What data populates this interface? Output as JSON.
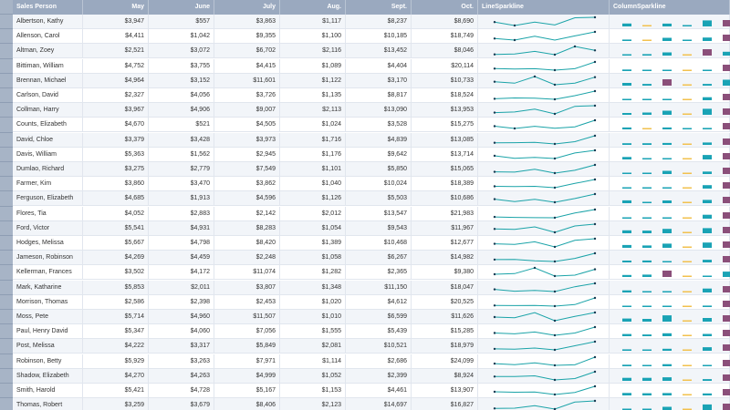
{
  "colors": {
    "header_bg": "#9aa9bf",
    "line": "#1aa3a8",
    "col_mid": "#1aa3b5",
    "col_low": "#f2c14e",
    "col_high": "#8b4f7a"
  },
  "headers": [
    "Sales Person",
    "May",
    "June",
    "July",
    "Aug.",
    "Sept.",
    "Oct.",
    "LineSparkline",
    "ColumnSparkline"
  ],
  "rows": [
    {
      "name": "Albertson, Kathy",
      "v": [
        "$3,947",
        "$557",
        "$3,863",
        "$1,117",
        "$8,237",
        "$8,690"
      ],
      "n": [
        3947,
        557,
        3863,
        1117,
        8237,
        8690
      ]
    },
    {
      "name": "Allenson, Carol",
      "v": [
        "$4,411",
        "$1,042",
        "$9,355",
        "$1,100",
        "$10,185",
        "$18,749"
      ],
      "n": [
        4411,
        1042,
        9355,
        1100,
        10185,
        18749
      ]
    },
    {
      "name": "Altman, Zoey",
      "v": [
        "$2,521",
        "$3,072",
        "$6,702",
        "$2,116",
        "$13,452",
        "$8,046"
      ],
      "n": [
        2521,
        3072,
        6702,
        2116,
        13452,
        8046
      ]
    },
    {
      "name": "Bittiman, William",
      "v": [
        "$4,752",
        "$3,755",
        "$4,415",
        "$1,089",
        "$4,404",
        "$20,114"
      ],
      "n": [
        4752,
        3755,
        4415,
        1089,
        4404,
        20114
      ]
    },
    {
      "name": "Brennan, Michael",
      "v": [
        "$4,964",
        "$3,152",
        "$11,601",
        "$1,122",
        "$3,170",
        "$10,733"
      ],
      "n": [
        4964,
        3152,
        11601,
        1122,
        3170,
        10733
      ]
    },
    {
      "name": "Carlson, David",
      "v": [
        "$2,327",
        "$4,056",
        "$3,726",
        "$1,135",
        "$8,817",
        "$18,524"
      ],
      "n": [
        2327,
        4056,
        3726,
        1135,
        8817,
        18524
      ]
    },
    {
      "name": "Collman, Harry",
      "v": [
        "$3,967",
        "$4,906",
        "$9,007",
        "$2,113",
        "$13,090",
        "$13,953"
      ],
      "n": [
        3967,
        4906,
        9007,
        2113,
        13090,
        13953
      ]
    },
    {
      "name": "Counts, Elizabeth",
      "v": [
        "$4,670",
        "$521",
        "$4,505",
        "$1,024",
        "$3,528",
        "$15,275"
      ],
      "n": [
        4670,
        521,
        4505,
        1024,
        3528,
        15275
      ]
    },
    {
      "name": "David, Chloe",
      "v": [
        "$3,379",
        "$3,428",
        "$3,973",
        "$1,716",
        "$4,839",
        "$13,085"
      ],
      "n": [
        3379,
        3428,
        3973,
        1716,
        4839,
        13085
      ]
    },
    {
      "name": "Davis, William",
      "v": [
        "$5,363",
        "$1,562",
        "$2,945",
        "$1,176",
        "$9,642",
        "$13,714"
      ],
      "n": [
        5363,
        1562,
        2945,
        1176,
        9642,
        13714
      ]
    },
    {
      "name": "Dumlao, Richard",
      "v": [
        "$3,275",
        "$2,779",
        "$7,549",
        "$1,101",
        "$5,850",
        "$15,065"
      ],
      "n": [
        3275,
        2779,
        7549,
        1101,
        5850,
        15065
      ]
    },
    {
      "name": "Farmer, Kim",
      "v": [
        "$3,860",
        "$3,470",
        "$3,862",
        "$1,040",
        "$10,024",
        "$18,389"
      ],
      "n": [
        3860,
        3470,
        3862,
        1040,
        10024,
        18389
      ]
    },
    {
      "name": "Ferguson, Elizabeth",
      "v": [
        "$4,685",
        "$1,913",
        "$4,596",
        "$1,126",
        "$5,503",
        "$10,686"
      ],
      "n": [
        4685,
        1913,
        4596,
        1126,
        5503,
        10686
      ]
    },
    {
      "name": "Flores, Tia",
      "v": [
        "$4,052",
        "$2,883",
        "$2,142",
        "$2,012",
        "$13,547",
        "$21,983"
      ],
      "n": [
        4052,
        2883,
        2142,
        2012,
        13547,
        21983
      ]
    },
    {
      "name": "Ford, Victor",
      "v": [
        "$5,541",
        "$4,931",
        "$8,283",
        "$1,054",
        "$9,543",
        "$11,967"
      ],
      "n": [
        5541,
        4931,
        8283,
        1054,
        9543,
        11967
      ]
    },
    {
      "name": "Hodges, Melissa",
      "v": [
        "$5,667",
        "$4,798",
        "$8,420",
        "$1,389",
        "$10,468",
        "$12,677"
      ],
      "n": [
        5667,
        4798,
        8420,
        1389,
        10468,
        12677
      ]
    },
    {
      "name": "Jameson, Robinson",
      "v": [
        "$4,269",
        "$4,459",
        "$2,248",
        "$1,058",
        "$6,267",
        "$14,982"
      ],
      "n": [
        4269,
        4459,
        2248,
        1058,
        6267,
        14982
      ]
    },
    {
      "name": "Kellerman, Frances",
      "v": [
        "$3,502",
        "$4,172",
        "$11,074",
        "$1,282",
        "$2,365",
        "$9,380"
      ],
      "n": [
        3502,
        4172,
        11074,
        1282,
        2365,
        9380
      ]
    },
    {
      "name": "Mark, Katharine",
      "v": [
        "$5,853",
        "$2,011",
        "$3,807",
        "$1,348",
        "$11,150",
        "$18,047"
      ],
      "n": [
        5853,
        2011,
        3807,
        1348,
        11150,
        18047
      ]
    },
    {
      "name": "Morrison, Thomas",
      "v": [
        "$2,586",
        "$2,398",
        "$2,453",
        "$1,020",
        "$4,612",
        "$20,525"
      ],
      "n": [
        2586,
        2398,
        2453,
        1020,
        4612,
        20525
      ]
    },
    {
      "name": "Moss, Pete",
      "v": [
        "$5,714",
        "$4,960",
        "$11,507",
        "$1,010",
        "$6,599",
        "$11,626"
      ],
      "n": [
        5714,
        4960,
        11507,
        1010,
        6599,
        11626
      ]
    },
    {
      "name": "Paul, Henry David",
      "v": [
        "$5,347",
        "$4,060",
        "$7,056",
        "$1,555",
        "$5,439",
        "$15,285"
      ],
      "n": [
        5347,
        4060,
        7056,
        1555,
        5439,
        15285
      ]
    },
    {
      "name": "Post, Melissa",
      "v": [
        "$4,222",
        "$3,317",
        "$5,849",
        "$2,081",
        "$10,521",
        "$18,979"
      ],
      "n": [
        4222,
        3317,
        5849,
        2081,
        10521,
        18979
      ]
    },
    {
      "name": "Robinson, Betty",
      "v": [
        "$5,929",
        "$3,263",
        "$7,971",
        "$1,114",
        "$2,686",
        "$24,099"
      ],
      "n": [
        5929,
        3263,
        7971,
        1114,
        2686,
        24099
      ]
    },
    {
      "name": "Shadow, Elizabeth",
      "v": [
        "$4,270",
        "$4,263",
        "$4,999",
        "$1,052",
        "$2,399",
        "$8,924"
      ],
      "n": [
        4270,
        4263,
        4999,
        1052,
        2399,
        8924
      ]
    },
    {
      "name": "Smith, Harold",
      "v": [
        "$5,421",
        "$4,728",
        "$5,167",
        "$1,153",
        "$4,461",
        "$13,907"
      ],
      "n": [
        5421,
        4728,
        5167,
        1153,
        4461,
        13907
      ]
    },
    {
      "name": "Thomas, Robert",
      "v": [
        "$3,259",
        "$3,679",
        "$8,406",
        "$2,123",
        "$14,697",
        "$16,827"
      ],
      "n": [
        3259,
        3679,
        8406,
        2123,
        14697,
        16827
      ]
    }
  ]
}
